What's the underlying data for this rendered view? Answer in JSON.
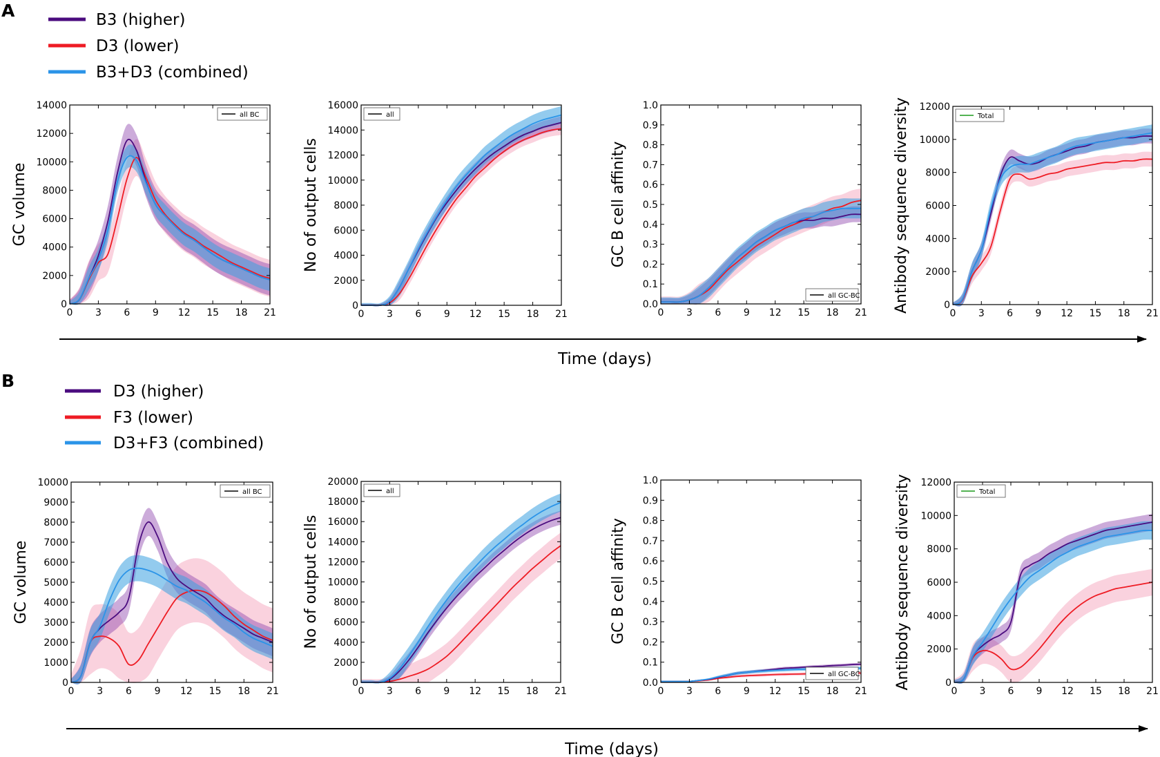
{
  "panels": [
    {
      "letter": "A",
      "legend": [
        {
          "label": "B3 (higher)",
          "color": "#4b0c7f"
        },
        {
          "label": "D3 (lower)",
          "color": "#ee1c24"
        },
        {
          "label": "B3+D3 (combined)",
          "color": "#2b94e8"
        }
      ],
      "time_label": "Time (days)"
    },
    {
      "letter": "B",
      "legend": [
        {
          "label": "D3 (higher)",
          "color": "#4b0c7f"
        },
        {
          "label": "F3 (lower)",
          "color": "#ee1c24"
        },
        {
          "label": "D3+F3 (combined)",
          "color": "#2b94e8"
        }
      ],
      "time_label": "Time (days)"
    }
  ],
  "colors": {
    "higher": "#4b0c7f",
    "lower": "#ee1c24",
    "combined": "#2b94e8",
    "total_legend": "#1a9a1a"
  },
  "chart_data": [
    {
      "type": "line",
      "panel": "A",
      "ylabel": "GC volume",
      "xlabel": "",
      "xlim": [
        0,
        21
      ],
      "ylim": [
        0,
        14000
      ],
      "xticks": [
        0,
        3,
        6,
        9,
        12,
        15,
        18,
        21
      ],
      "yticks": [
        0,
        2000,
        4000,
        6000,
        8000,
        10000,
        12000,
        14000
      ],
      "inset_legend": "all BC",
      "inset_pos": "top-right",
      "inset_color": "#000000",
      "x": [
        0,
        1,
        2,
        3,
        4,
        5,
        6,
        7,
        8,
        9,
        10,
        11,
        12,
        13,
        14,
        15,
        16,
        17,
        18,
        19,
        20,
        21
      ],
      "series": [
        {
          "name": "higher",
          "values": [
            0,
            300,
            1800,
            3400,
            5800,
            9200,
            11500,
            10800,
            8600,
            7000,
            6200,
            5500,
            4900,
            4500,
            4000,
            3500,
            3100,
            2800,
            2500,
            2200,
            1900,
            1700
          ],
          "band": 1100
        },
        {
          "name": "lower",
          "values": [
            0,
            280,
            1700,
            2900,
            3500,
            6000,
            8800,
            10300,
            8900,
            7300,
            6300,
            5600,
            5000,
            4600,
            4100,
            3700,
            3300,
            2900,
            2600,
            2300,
            2000,
            1800
          ],
          "band": 1300
        },
        {
          "name": "combined",
          "values": [
            0,
            300,
            1800,
            3100,
            5200,
            8600,
            10300,
            10100,
            8500,
            7000,
            6200,
            5500,
            4900,
            4500,
            4000,
            3500,
            3100,
            2800,
            2500,
            2200,
            1900,
            1700
          ],
          "band": 800
        }
      ]
    },
    {
      "type": "line",
      "panel": "A",
      "ylabel": "No of output cells",
      "xlabel": "",
      "xlim": [
        0,
        21
      ],
      "ylim": [
        0,
        16000
      ],
      "xticks": [
        0,
        3,
        6,
        9,
        12,
        15,
        18,
        21
      ],
      "yticks": [
        0,
        2000,
        4000,
        6000,
        8000,
        10000,
        12000,
        14000,
        16000
      ],
      "inset_legend": "all",
      "inset_pos": "top-left",
      "inset_color": "#000000",
      "x": [
        0,
        1,
        2,
        3,
        4,
        5,
        6,
        7,
        8,
        9,
        10,
        11,
        12,
        13,
        14,
        15,
        16,
        17,
        18,
        19,
        20,
        21
      ],
      "series": [
        {
          "name": "higher",
          "values": [
            0,
            0,
            0,
            300,
            1400,
            2900,
            4400,
            5800,
            7100,
            8200,
            9200,
            10100,
            10900,
            11600,
            12200,
            12700,
            13200,
            13600,
            13900,
            14200,
            14400,
            14600
          ],
          "band": 500
        },
        {
          "name": "lower",
          "values": [
            0,
            0,
            0,
            200,
            900,
            2100,
            3500,
            4900,
            6200,
            7400,
            8500,
            9400,
            10300,
            11000,
            11700,
            12300,
            12800,
            13200,
            13500,
            13800,
            14000,
            14100
          ],
          "band": 500
        },
        {
          "name": "combined",
          "values": [
            0,
            0,
            0,
            300,
            1400,
            2900,
            4500,
            5900,
            7200,
            8400,
            9500,
            10400,
            11200,
            12000,
            12600,
            13200,
            13700,
            14100,
            14500,
            14800,
            15000,
            15200
          ],
          "band": 700
        }
      ]
    },
    {
      "type": "line",
      "panel": "A",
      "ylabel": "GC B cell affinity",
      "xlabel": "",
      "xlim": [
        0,
        21
      ],
      "ylim": [
        0,
        1.0
      ],
      "xticks": [
        0,
        3,
        6,
        9,
        12,
        15,
        18,
        21
      ],
      "yticks": [
        0,
        0.1,
        0.2,
        0.3,
        0.4,
        0.5,
        0.6,
        0.7,
        0.8,
        0.9,
        1.0
      ],
      "inset_legend": "all GC-BC",
      "inset_pos": "bottom-right",
      "inset_color": "#000000",
      "x": [
        0,
        1,
        2,
        3,
        4,
        5,
        6,
        7,
        8,
        9,
        10,
        11,
        12,
        13,
        14,
        15,
        16,
        17,
        18,
        19,
        20,
        21
      ],
      "series": [
        {
          "name": "higher",
          "values": [
            0.01,
            0.01,
            0.01,
            0.02,
            0.04,
            0.08,
            0.13,
            0.18,
            0.23,
            0.27,
            0.31,
            0.34,
            0.37,
            0.39,
            0.41,
            0.42,
            0.42,
            0.43,
            0.43,
            0.44,
            0.45,
            0.45
          ],
          "band": 0.04
        },
        {
          "name": "lower",
          "values": [
            0.01,
            0.01,
            0.01,
            0.02,
            0.04,
            0.07,
            0.12,
            0.17,
            0.21,
            0.25,
            0.29,
            0.32,
            0.35,
            0.38,
            0.4,
            0.42,
            0.44,
            0.46,
            0.48,
            0.49,
            0.51,
            0.52
          ],
          "band": 0.06
        },
        {
          "name": "combined",
          "values": [
            0.01,
            0.01,
            0.01,
            0.02,
            0.04,
            0.08,
            0.13,
            0.18,
            0.23,
            0.27,
            0.31,
            0.34,
            0.37,
            0.39,
            0.41,
            0.43,
            0.44,
            0.46,
            0.47,
            0.48,
            0.48,
            0.48
          ],
          "band": 0.05
        }
      ]
    },
    {
      "type": "line",
      "panel": "A",
      "ylabel": "Antibody sequence diversity",
      "xlabel": "",
      "xlim": [
        0,
        21
      ],
      "ylim": [
        0,
        12000
      ],
      "xticks": [
        0,
        3,
        6,
        9,
        12,
        15,
        18,
        21
      ],
      "yticks": [
        0,
        2000,
        4000,
        6000,
        8000,
        10000,
        12000
      ],
      "inset_legend": "Total",
      "inset_pos": "top-left",
      "inset_color": "#1a9a1a",
      "x": [
        0,
        1,
        2,
        3,
        4,
        5,
        6,
        7,
        8,
        9,
        10,
        11,
        12,
        13,
        14,
        15,
        16,
        17,
        18,
        19,
        20,
        21
      ],
      "series": [
        {
          "name": "higher",
          "values": [
            0,
            300,
            2000,
            3300,
            5500,
            7800,
            8900,
            8700,
            8500,
            8600,
            8900,
            9100,
            9300,
            9500,
            9600,
            9800,
            9900,
            10000,
            10100,
            10100,
            10200,
            10200
          ],
          "band": 450
        },
        {
          "name": "lower",
          "values": [
            0,
            250,
            1700,
            2500,
            3500,
            5700,
            7600,
            7900,
            7600,
            7700,
            7900,
            8000,
            8200,
            8300,
            8400,
            8500,
            8600,
            8600,
            8700,
            8700,
            8800,
            8800
          ],
          "band": 450
        },
        {
          "name": "combined",
          "values": [
            0,
            300,
            2000,
            3300,
            5800,
            7600,
            8300,
            8500,
            8500,
            8700,
            8900,
            9100,
            9400,
            9600,
            9700,
            9800,
            9900,
            10000,
            10100,
            10200,
            10300,
            10400
          ],
          "band": 500
        }
      ]
    },
    {
      "type": "line",
      "panel": "B",
      "ylabel": "GC volume",
      "xlabel": "",
      "xlim": [
        0,
        21
      ],
      "ylim": [
        0,
        10000
      ],
      "xticks": [
        0,
        3,
        6,
        9,
        12,
        15,
        18,
        21
      ],
      "yticks": [
        0,
        1000,
        2000,
        3000,
        4000,
        5000,
        6000,
        7000,
        8000,
        9000,
        10000
      ],
      "inset_legend": "all BC",
      "inset_pos": "top-right",
      "inset_color": "#000000",
      "x": [
        0,
        1,
        2,
        3,
        4,
        5,
        6,
        7,
        8,
        9,
        10,
        11,
        12,
        13,
        14,
        15,
        16,
        17,
        18,
        19,
        20,
        21
      ],
      "series": [
        {
          "name": "higher",
          "values": [
            0,
            300,
            2000,
            2700,
            3100,
            3500,
            4200,
            6800,
            8000,
            7300,
            6000,
            5200,
            4800,
            4500,
            4200,
            3700,
            3300,
            3000,
            2700,
            2400,
            2200,
            2000
          ],
          "band": 700
        },
        {
          "name": "lower",
          "values": [
            0,
            300,
            2000,
            2300,
            2200,
            1800,
            900,
            1100,
            1900,
            2700,
            3500,
            4200,
            4500,
            4600,
            4500,
            4200,
            3800,
            3300,
            2900,
            2600,
            2300,
            2100
          ],
          "band": 1600
        },
        {
          "name": "combined",
          "values": [
            0,
            300,
            2000,
            2800,
            4100,
            5100,
            5600,
            5700,
            5600,
            5400,
            5100,
            4800,
            4600,
            4300,
            4000,
            3600,
            3200,
            2900,
            2500,
            2200,
            2000,
            1800
          ],
          "band": 650
        }
      ]
    },
    {
      "type": "line",
      "panel": "B",
      "ylabel": "No of output cells",
      "xlabel": "",
      "xlim": [
        0,
        21
      ],
      "ylim": [
        0,
        20000
      ],
      "xticks": [
        0,
        3,
        6,
        9,
        12,
        15,
        18,
        21
      ],
      "yticks": [
        0,
        2000,
        4000,
        6000,
        8000,
        10000,
        12000,
        14000,
        16000,
        18000,
        20000
      ],
      "inset_legend": "all",
      "inset_pos": "top-left",
      "inset_color": "#000000",
      "x": [
        0,
        1,
        2,
        3,
        4,
        5,
        6,
        7,
        8,
        9,
        10,
        11,
        12,
        13,
        14,
        15,
        16,
        17,
        18,
        19,
        20,
        21
      ],
      "series": [
        {
          "name": "higher",
          "values": [
            0,
            0,
            0,
            300,
            1100,
            2200,
            3500,
            4900,
            6200,
            7400,
            8500,
            9500,
            10500,
            11400,
            12300,
            13100,
            13900,
            14600,
            15200,
            15700,
            16100,
            16400
          ],
          "band": 700
        },
        {
          "name": "lower",
          "values": [
            0,
            0,
            0,
            100,
            300,
            600,
            900,
            1300,
            1900,
            2600,
            3500,
            4500,
            5500,
            6500,
            7500,
            8500,
            9500,
            10400,
            11300,
            12100,
            12900,
            13600
          ],
          "band": 1300
        },
        {
          "name": "combined",
          "values": [
            0,
            0,
            0,
            400,
            1300,
            2600,
            4000,
            5500,
            6900,
            8200,
            9400,
            10500,
            11500,
            12500,
            13400,
            14200,
            15000,
            15700,
            16400,
            17000,
            17500,
            17900
          ],
          "band": 900
        }
      ]
    },
    {
      "type": "line",
      "panel": "B",
      "ylabel": "GC B cell affinity",
      "xlabel": "",
      "xlim": [
        0,
        21
      ],
      "ylim": [
        0,
        1.0
      ],
      "xticks": [
        0,
        3,
        6,
        9,
        12,
        15,
        18,
        21
      ],
      "yticks": [
        0,
        0.1,
        0.2,
        0.3,
        0.4,
        0.5,
        0.6,
        0.7,
        0.8,
        0.9,
        1.0
      ],
      "inset_legend": "all GC-BC",
      "inset_pos": "bottom-right",
      "inset_color": "#000000",
      "x": [
        0,
        1,
        2,
        3,
        4,
        5,
        6,
        7,
        8,
        9,
        10,
        11,
        12,
        13,
        14,
        15,
        16,
        17,
        18,
        19,
        20,
        21
      ],
      "series": [
        {
          "name": "higher",
          "values": [
            0.005,
            0.005,
            0.005,
            0.005,
            0.01,
            0.015,
            0.025,
            0.035,
            0.045,
            0.05,
            0.055,
            0.06,
            0.065,
            0.07,
            0.072,
            0.075,
            0.078,
            0.08,
            0.083,
            0.085,
            0.088,
            0.09
          ],
          "band": 0.007
        },
        {
          "name": "lower",
          "values": [
            0.005,
            0.005,
            0.005,
            0.005,
            0.008,
            0.012,
            0.02,
            0.025,
            0.03,
            0.033,
            0.035,
            0.037,
            0.039,
            0.04,
            0.041,
            0.042,
            0.043,
            0.044,
            0.045,
            0.045,
            0.046,
            0.046
          ],
          "band": 0.008
        },
        {
          "name": "combined",
          "values": [
            0.005,
            0.005,
            0.005,
            0.005,
            0.01,
            0.016,
            0.027,
            0.036,
            0.045,
            0.05,
            0.054,
            0.057,
            0.06,
            0.062,
            0.064,
            0.065,
            0.066,
            0.067,
            0.068,
            0.069,
            0.07,
            0.07
          ],
          "band": 0.008
        }
      ]
    },
    {
      "type": "line",
      "panel": "B",
      "ylabel": "Antibody sequence diversity",
      "xlabel": "",
      "xlim": [
        0,
        21
      ],
      "ylim": [
        0,
        12000
      ],
      "xticks": [
        0,
        3,
        6,
        9,
        12,
        15,
        18,
        21
      ],
      "yticks": [
        0,
        2000,
        4000,
        6000,
        8000,
        10000,
        12000
      ],
      "inset_legend": "Total",
      "inset_pos": "top-left",
      "inset_color": "#1a9a1a",
      "x": [
        0,
        1,
        2,
        3,
        4,
        5,
        6,
        7,
        8,
        9,
        10,
        11,
        12,
        13,
        14,
        15,
        16,
        17,
        18,
        19,
        20,
        21
      ],
      "series": [
        {
          "name": "higher",
          "values": [
            0,
            200,
            1600,
            2200,
            2600,
            2900,
            3600,
            6400,
            7000,
            7300,
            7700,
            8000,
            8300,
            8500,
            8700,
            8900,
            9100,
            9200,
            9300,
            9400,
            9500,
            9600
          ],
          "band": 500
        },
        {
          "name": "lower",
          "values": [
            0,
            200,
            1500,
            1900,
            1800,
            1400,
            800,
            900,
            1400,
            2000,
            2700,
            3400,
            4000,
            4500,
            4900,
            5200,
            5400,
            5600,
            5700,
            5800,
            5900,
            6000
          ],
          "band": 800
        },
        {
          "name": "combined",
          "values": [
            0,
            200,
            1600,
            2400,
            3300,
            4200,
            5000,
            5700,
            6300,
            6700,
            7100,
            7500,
            7800,
            8100,
            8300,
            8500,
            8700,
            8800,
            8900,
            9000,
            9100,
            9100
          ],
          "band": 550
        }
      ]
    }
  ]
}
